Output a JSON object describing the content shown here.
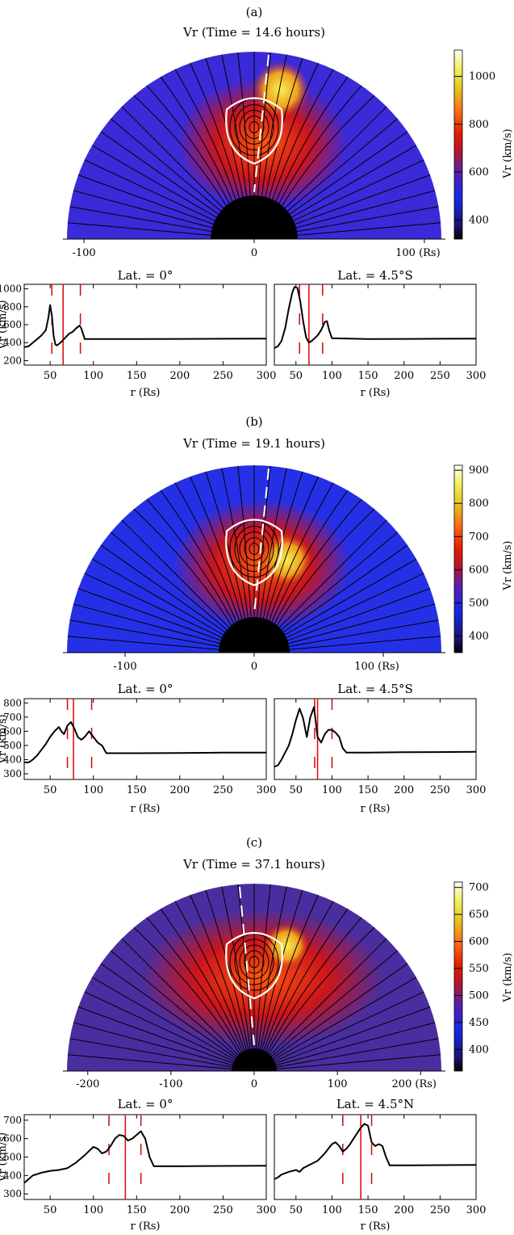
{
  "chart_data": [
    {
      "panel": "(a)",
      "type": "heatmap",
      "title": "Vr    (Time = 14.6 hours)",
      "x_ticks": [
        "-100",
        "0",
        "100 (Rs)"
      ],
      "x_tick_values": [
        -100,
        0,
        100
      ],
      "x_range": [
        -110,
        110
      ],
      "colorbar": {
        "label": "Vr (km/s)",
        "range": [
          320,
          1110
        ],
        "ticks": [
          "1000",
          "800",
          "600",
          "400"
        ],
        "tick_values": [
          1000,
          800,
          600,
          400
        ]
      },
      "profiles": [
        {
          "type": "line",
          "title": "Lat. = 0°",
          "xlabel": "r (Rs)",
          "ylabel": "Vr (km/s)",
          "xlim": [
            20,
            300
          ],
          "ylim": [
            150,
            1050
          ],
          "x_ticks": [
            "50",
            "100",
            "150",
            "200",
            "250",
            "300"
          ],
          "x_tick_values": [
            50,
            100,
            150,
            200,
            250,
            300
          ],
          "y_ticks": [
            "1000",
            "800",
            "600",
            "400",
            "200"
          ],
          "y_tick_values": [
            1000,
            800,
            600,
            400,
            200
          ],
          "x": [
            20,
            25,
            30,
            35,
            40,
            45,
            48,
            50,
            52,
            54,
            56,
            58,
            62,
            68,
            72,
            76,
            80,
            84,
            86,
            88,
            90,
            100,
            150,
            200,
            250,
            300
          ],
          "y": [
            350,
            360,
            400,
            440,
            480,
            540,
            680,
            820,
            700,
            480,
            380,
            370,
            400,
            460,
            500,
            520,
            560,
            590,
            560,
            500,
            440,
            440,
            440,
            442,
            443,
            445
          ],
          "vlines": [
            {
              "x": 52,
              "style": "dashed"
            },
            {
              "x": 65,
              "style": "solid"
            },
            {
              "x": 85,
              "style": "dashed"
            }
          ]
        },
        {
          "type": "line",
          "title": "Lat. = 4.5°S",
          "xlabel": "r (Rs)",
          "ylabel": "",
          "xlim": [
            20,
            300
          ],
          "ylim": [
            150,
            1050
          ],
          "x_ticks": [
            "50",
            "100",
            "150",
            "200",
            "250",
            "300"
          ],
          "x_tick_values": [
            50,
            100,
            150,
            200,
            250,
            300
          ],
          "y_ticks": [],
          "y_tick_values": [],
          "x": [
            20,
            25,
            30,
            35,
            40,
            45,
            48,
            52,
            56,
            60,
            64,
            68,
            72,
            76,
            80,
            85,
            90,
            93,
            96,
            100,
            150,
            200,
            250,
            300
          ],
          "y": [
            340,
            360,
            420,
            560,
            780,
            960,
            1020,
            1010,
            860,
            640,
            460,
            400,
            420,
            450,
            480,
            540,
            630,
            640,
            540,
            450,
            440,
            442,
            443,
            445
          ],
          "vlines": [
            {
              "x": 55,
              "style": "dashed"
            },
            {
              "x": 68,
              "style": "solid"
            },
            {
              "x": 87,
              "style": "dashed"
            }
          ]
        }
      ]
    },
    {
      "panel": "(b)",
      "type": "heatmap",
      "title": "Vr    (Time = 19.1 hours)",
      "x_ticks": [
        "-100",
        "0",
        "100 (Rs)"
      ],
      "x_tick_values": [
        -100,
        0,
        100
      ],
      "x_range": [
        -145,
        145
      ],
      "colorbar": {
        "label": "Vr (km/s)",
        "range": [
          350,
          915
        ],
        "ticks": [
          "900",
          "800",
          "700",
          "600",
          "500",
          "400"
        ],
        "tick_values": [
          900,
          800,
          700,
          600,
          500,
          400
        ]
      },
      "profiles": [
        {
          "type": "line",
          "title": "Lat. = 0°",
          "xlabel": "r (Rs)",
          "ylabel": "Vr (km/s)",
          "xlim": [
            20,
            300
          ],
          "ylim": [
            260,
            830
          ],
          "x_ticks": [
            "50",
            "100",
            "150",
            "200",
            "250",
            "300"
          ],
          "x_tick_values": [
            50,
            100,
            150,
            200,
            250,
            300
          ],
          "y_ticks": [
            "800",
            "700",
            "600",
            "500",
            "400",
            "300"
          ],
          "y_tick_values": [
            800,
            700,
            600,
            500,
            400,
            300
          ],
          "x": [
            20,
            25,
            30,
            35,
            40,
            45,
            50,
            55,
            60,
            63,
            66,
            70,
            74,
            78,
            82,
            86,
            90,
            95,
            100,
            105,
            110,
            115,
            150,
            200,
            250,
            300
          ],
          "y": [
            380,
            380,
            400,
            430,
            470,
            510,
            560,
            600,
            630,
            600,
            580,
            640,
            665,
            620,
            560,
            540,
            560,
            600,
            560,
            520,
            500,
            445,
            445,
            447,
            449,
            450
          ],
          "vlines": [
            {
              "x": 70,
              "style": "dashed"
            },
            {
              "x": 77,
              "style": "solid"
            },
            {
              "x": 98,
              "style": "dashed"
            }
          ]
        },
        {
          "type": "line",
          "title": "Lat. = 4.5°S",
          "xlabel": "r (Rs)",
          "ylabel": "",
          "xlim": [
            20,
            300
          ],
          "ylim": [
            260,
            830
          ],
          "x_ticks": [
            "50",
            "100",
            "150",
            "200",
            "250",
            "300"
          ],
          "x_tick_values": [
            50,
            100,
            150,
            200,
            250,
            300
          ],
          "y_ticks": [],
          "y_tick_values": [],
          "x": [
            20,
            25,
            30,
            35,
            40,
            45,
            50,
            55,
            60,
            65,
            70,
            75,
            80,
            85,
            90,
            95,
            100,
            105,
            110,
            115,
            120,
            150,
            200,
            250,
            300
          ],
          "y": [
            350,
            360,
            400,
            450,
            500,
            580,
            680,
            760,
            690,
            560,
            700,
            770,
            560,
            520,
            580,
            610,
            610,
            590,
            560,
            480,
            450,
            450,
            452,
            453,
            455
          ],
          "vlines": [
            {
              "x": 76,
              "style": "dashed"
            },
            {
              "x": 80,
              "style": "solid"
            },
            {
              "x": 100,
              "style": "dashed"
            }
          ]
        }
      ]
    },
    {
      "panel": "(c)",
      "type": "heatmap",
      "title": "Vr    (Time = 37.1 hours)",
      "x_ticks": [
        "-200",
        "-100",
        "0",
        "100",
        "200 (Rs)"
      ],
      "x_tick_values": [
        -200,
        -100,
        0,
        100,
        200
      ],
      "x_range": [
        -225,
        225
      ],
      "colorbar": {
        "label": "Vr (km/s)",
        "range": [
          360,
          710
        ],
        "ticks": [
          "700",
          "650",
          "600",
          "550",
          "500",
          "450",
          "400"
        ],
        "tick_values": [
          700,
          650,
          600,
          550,
          500,
          450,
          400
        ]
      },
      "profiles": [
        {
          "type": "line",
          "title": "Lat. = 0°",
          "xlabel": "r (Rs)",
          "ylabel": "Vr (km/s)",
          "xlim": [
            20,
            300
          ],
          "ylim": [
            270,
            730
          ],
          "x_ticks": [
            "50",
            "100",
            "150",
            "200",
            "250",
            "300"
          ],
          "x_tick_values": [
            50,
            100,
            150,
            200,
            250,
            300
          ],
          "y_ticks": [
            "700",
            "600",
            "500",
            "400",
            "300"
          ],
          "y_tick_values": [
            700,
            600,
            500,
            400,
            300
          ],
          "x": [
            20,
            25,
            30,
            40,
            50,
            60,
            70,
            80,
            90,
            100,
            105,
            110,
            115,
            120,
            125,
            130,
            135,
            140,
            145,
            150,
            155,
            160,
            165,
            170,
            200,
            250,
            300
          ],
          "y": [
            360,
            380,
            400,
            415,
            425,
            430,
            440,
            470,
            510,
            555,
            545,
            520,
            530,
            560,
            600,
            620,
            615,
            590,
            600,
            620,
            640,
            600,
            500,
            450,
            450,
            452,
            453
          ],
          "vlines": [
            {
              "x": 118,
              "style": "dashed"
            },
            {
              "x": 137,
              "style": "solid"
            },
            {
              "x": 155,
              "style": "dashed"
            }
          ]
        },
        {
          "type": "line",
          "title": "Lat. = 4.5°N",
          "xlabel": "r (Rs)",
          "ylabel": "",
          "xlim": [
            20,
            300
          ],
          "ylim": [
            270,
            730
          ],
          "x_ticks": [
            "50",
            "100",
            "150",
            "200",
            "250",
            "300"
          ],
          "x_tick_values": [
            50,
            100,
            150,
            200,
            250,
            300
          ],
          "y_ticks": [],
          "y_tick_values": [],
          "x": [
            20,
            25,
            30,
            40,
            50,
            55,
            60,
            70,
            80,
            90,
            100,
            105,
            110,
            115,
            120,
            125,
            130,
            135,
            140,
            145,
            150,
            155,
            160,
            165,
            170,
            175,
            180,
            200,
            250,
            300
          ],
          "y": [
            380,
            390,
            405,
            420,
            430,
            420,
            440,
            460,
            480,
            520,
            570,
            580,
            560,
            530,
            545,
            570,
            600,
            630,
            660,
            680,
            670,
            580,
            560,
            570,
            560,
            500,
            455,
            455,
            456,
            457
          ],
          "vlines": [
            {
              "x": 115,
              "style": "dashed"
            },
            {
              "x": 140,
              "style": "solid"
            },
            {
              "x": 155,
              "style": "dashed"
            }
          ]
        }
      ]
    }
  ]
}
